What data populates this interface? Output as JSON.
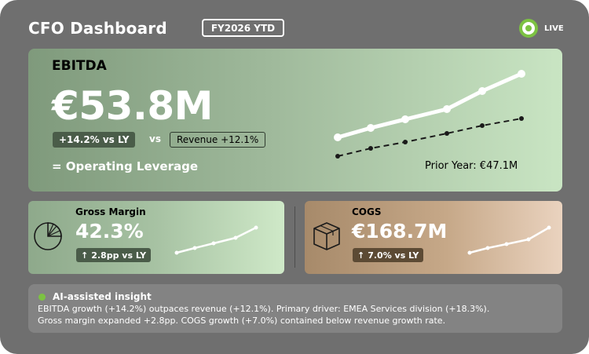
{
  "header": {
    "title": "CFO Dashboard",
    "period": "FY2026 YTD",
    "live_label": "LIVE"
  },
  "ebitda": {
    "label": "EBITDA",
    "value": "€53.8M",
    "delta_vs_ly": "+14.2% vs LY",
    "vs": "vs",
    "revenue_comparison": "Revenue +12.1%",
    "conclusion": "= Operating Leverage",
    "prior_year": "Prior Year: €47.1M"
  },
  "gross_margin": {
    "label": "Gross Margin",
    "value": "42.3%",
    "delta_arrow": "↑",
    "delta": "2.8pp vs LY",
    "icon": "pie-chart-icon"
  },
  "cogs": {
    "label": "COGS",
    "value": "€168.7M",
    "delta_arrow": "↑",
    "delta": "7.0% vs LY",
    "icon": "box-icon"
  },
  "insight": {
    "title": "AI-assisted insight",
    "line1": "EBITDA growth (+14.2%) outpaces revenue (+12.1%). Primary driver: EMEA Services division (+18.3%).",
    "line2": "Gross margin expanded +2.8pp. COGS growth (+7.0%) contained below revenue growth rate."
  },
  "colors": {
    "live": "#7cc242",
    "background": "#6f6f6f"
  }
}
